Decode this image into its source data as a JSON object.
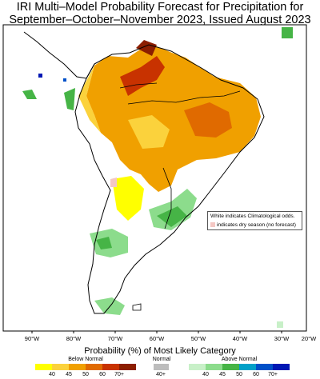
{
  "title": {
    "line1": "IRI Multi–Model Probability Forecast for Precipitation for",
    "line2": "September–October–November 2023, Issued August 2023"
  },
  "note": {
    "line1": "White indicates Climatological odds.",
    "line2": "indicates dry season (no forecast)"
  },
  "axis": {
    "lon_labels": [
      "90°W",
      "80°W",
      "70°W",
      "60°W",
      "50°W",
      "40°W",
      "30°W",
      "20°W"
    ]
  },
  "legend": {
    "title": "Probability (%) of Most Likely Category",
    "below_label": "Below Normal",
    "normal_label": "Normal",
    "above_label": "Above Normal",
    "below_ticks": [
      "40",
      "45",
      "50",
      "60",
      "70+"
    ],
    "normal_ticks": [
      "40+"
    ],
    "above_ticks": [
      "40",
      "45",
      "50",
      "60",
      "70+"
    ],
    "below_colors": [
      "#ffff00",
      "#fbd23c",
      "#f0a000",
      "#e06a00",
      "#c83200",
      "#8c1e00"
    ],
    "normal_color": "#bdbdbd",
    "above_colors": [
      "#c8f0c8",
      "#8cdc8c",
      "#46b446",
      "#00a0c8",
      "#0050c8",
      "#0018b4"
    ]
  },
  "colors": {
    "ocean": "#ffffff",
    "land_climatology": "#ffffff",
    "dry_season": "#f4c7c3",
    "coastline": "#000000"
  }
}
